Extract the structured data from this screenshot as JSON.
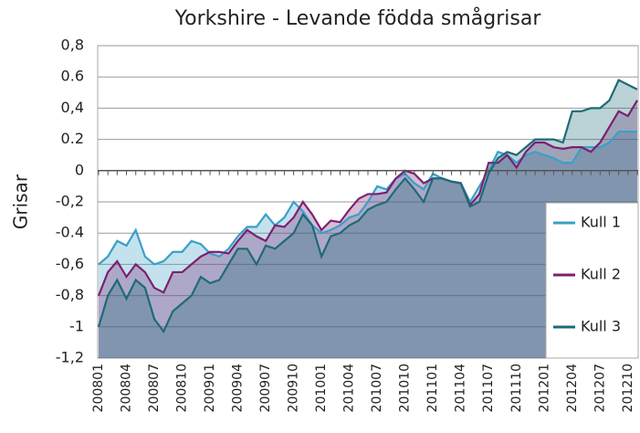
{
  "chart_data": {
    "type": "area",
    "title": "Yorkshire - Levande födda smågrisar",
    "y_label": "Grisar",
    "categories": [
      "200801",
      null,
      null,
      "200804",
      null,
      null,
      "200807",
      null,
      null,
      "200810",
      null,
      null,
      "200901",
      null,
      null,
      "200904",
      null,
      null,
      "200907",
      null,
      null,
      "200910",
      null,
      null,
      "201001",
      null,
      null,
      "201004",
      null,
      null,
      "201007",
      null,
      null,
      "201010",
      null,
      null,
      "201101",
      null,
      null,
      "201104",
      null,
      null,
      "201107",
      null,
      null,
      "201110",
      null,
      null,
      "201201",
      null,
      null,
      "201204",
      null,
      null,
      "201207",
      null,
      null,
      "201210",
      null
    ],
    "series": [
      {
        "name": "Kull 1",
        "color": "#3aa0c8",
        "values": [
          -0.6,
          -0.55,
          -0.45,
          -0.48,
          -0.38,
          -0.55,
          -0.6,
          -0.58,
          -0.52,
          -0.52,
          -0.45,
          -0.47,
          -0.53,
          -0.55,
          -0.5,
          -0.42,
          -0.36,
          -0.36,
          -0.28,
          -0.35,
          -0.3,
          -0.2,
          -0.26,
          -0.35,
          -0.4,
          -0.38,
          -0.35,
          -0.3,
          -0.28,
          -0.2,
          -0.1,
          -0.12,
          -0.05,
          -0.02,
          -0.08,
          -0.12,
          -0.02,
          -0.05,
          -0.07,
          -0.08,
          -0.2,
          -0.1,
          0,
          0.12,
          0.1,
          0.05,
          0.1,
          0.12,
          0.1,
          0.08,
          0.05,
          0.05,
          0.15,
          0.15,
          0.15,
          0.18,
          0.25,
          0.25,
          0.25
        ]
      },
      {
        "name": "Kull 2",
        "color": "#7b2170",
        "values": [
          -0.8,
          -0.65,
          -0.58,
          -0.68,
          -0.6,
          -0.65,
          -0.75,
          -0.78,
          -0.65,
          -0.65,
          -0.6,
          -0.55,
          -0.52,
          -0.52,
          -0.53,
          -0.45,
          -0.38,
          -0.42,
          -0.45,
          -0.35,
          -0.36,
          -0.3,
          -0.2,
          -0.28,
          -0.38,
          -0.32,
          -0.33,
          -0.25,
          -0.18,
          -0.15,
          -0.15,
          -0.14,
          -0.05,
          0,
          -0.02,
          -0.08,
          -0.05,
          -0.05,
          -0.07,
          -0.08,
          -0.22,
          -0.15,
          0.05,
          0.05,
          0.1,
          0.02,
          0.12,
          0.18,
          0.18,
          0.15,
          0.14,
          0.15,
          0.15,
          0.12,
          0.18,
          0.28,
          0.38,
          0.35,
          0.45
        ]
      },
      {
        "name": "Kull 3",
        "color": "#1f6a78",
        "values": [
          -1,
          -0.8,
          -0.7,
          -0.82,
          -0.7,
          -0.75,
          -0.95,
          -1.03,
          -0.9,
          -0.85,
          -0.8,
          -0.68,
          -0.72,
          -0.7,
          -0.6,
          -0.5,
          -0.5,
          -0.6,
          -0.48,
          -0.5,
          -0.45,
          -0.4,
          -0.28,
          -0.35,
          -0.55,
          -0.42,
          -0.4,
          -0.35,
          -0.32,
          -0.25,
          -0.22,
          -0.2,
          -0.12,
          -0.05,
          -0.12,
          -0.2,
          -0.05,
          -0.05,
          -0.07,
          -0.08,
          -0.23,
          -0.2,
          -0.02,
          0.08,
          0.12,
          0.1,
          0.15,
          0.2,
          0.2,
          0.2,
          0.18,
          0.38,
          0.38,
          0.4,
          0.4,
          0.45,
          0.58,
          0.55,
          0.52
        ]
      }
    ],
    "ylim": [
      -1.2,
      0.8
    ],
    "yticks": [
      {
        "value": -1.2,
        "label": "-1,2"
      },
      -1,
      {
        "value": -0.8,
        "label": "-0,8"
      },
      {
        "value": -0.6,
        "label": "-0,6"
      },
      {
        "value": -0.4,
        "label": "-0.4"
      },
      {
        "value": -0.2,
        "label": "-0,2"
      },
      0,
      {
        "value": 0.2,
        "label": "0.2"
      },
      {
        "value": 0.4,
        "label": "0,4"
      },
      {
        "value": 0.6,
        "label": "0.6"
      },
      {
        "value": 0.8,
        "label": "0,8"
      }
    ],
    "grid": true,
    "legend": "lower right"
  }
}
